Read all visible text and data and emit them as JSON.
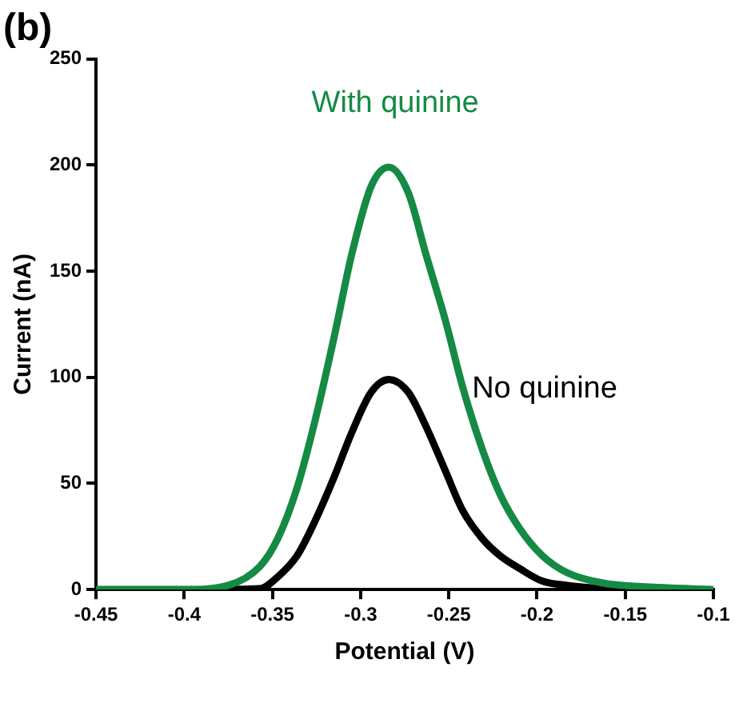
{
  "chart_data": {
    "type": "line",
    "title": "(b)",
    "xlabel": "Potential (V)",
    "ylabel": "Current (nA)",
    "xlim": [
      -0.45,
      -0.1
    ],
    "xticks": [
      -0.45,
      -0.4,
      -0.35,
      -0.3,
      -0.25,
      -0.2,
      -0.15,
      -0.1
    ],
    "ylim": [
      0,
      250
    ],
    "yticks": [
      0,
      50,
      100,
      150,
      200,
      250
    ],
    "marker": "none",
    "series": [
      {
        "name": "With quinine",
        "color": "#158a44",
        "x": [
          -0.45,
          -0.4,
          -0.375,
          -0.357,
          -0.347,
          -0.336,
          -0.326,
          -0.315,
          -0.305,
          -0.294,
          -0.284,
          -0.273,
          -0.263,
          -0.252,
          -0.242,
          -0.231,
          -0.221,
          -0.21,
          -0.197,
          -0.183,
          -0.162,
          -0.13,
          -0.1
        ],
        "values": [
          0,
          0,
          2,
          11,
          24,
          48,
          79,
          119,
          158,
          190,
          199,
          187,
          158,
          127,
          95,
          66,
          45,
          29,
          16,
          8,
          3,
          1,
          0
        ]
      },
      {
        "name": "No quinine",
        "color": "#000000",
        "x": [
          -0.45,
          -0.4,
          -0.357,
          -0.347,
          -0.336,
          -0.326,
          -0.315,
          -0.305,
          -0.294,
          -0.284,
          -0.273,
          -0.263,
          -0.252,
          -0.242,
          -0.231,
          -0.221,
          -0.21,
          -0.197,
          -0.183,
          -0.162,
          -0.13,
          -0.1
        ],
        "values": [
          0,
          0,
          0.5,
          6,
          16,
          32,
          53,
          74,
          93,
          99,
          93,
          77,
          56,
          37,
          24,
          16,
          10,
          4,
          2,
          0.5,
          0,
          0
        ]
      }
    ]
  }
}
